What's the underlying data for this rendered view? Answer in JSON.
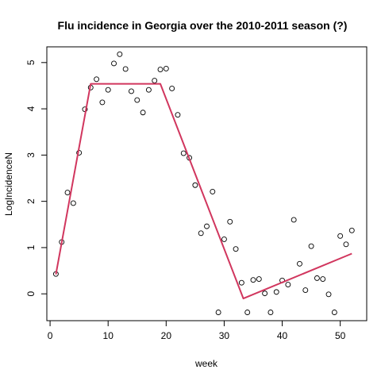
{
  "chart_data": {
    "type": "scatter",
    "title": "Flu incidence in Georgia over the 2010-2011 season (?)",
    "xlabel": "week",
    "ylabel": "LogIncidenceN",
    "xlim": [
      -0.56,
      54.56
    ],
    "ylim": [
      -0.58,
      5.34
    ],
    "xticks": [
      0,
      10,
      20,
      30,
      40,
      50
    ],
    "yticks": [
      0,
      1,
      2,
      3,
      4,
      5
    ],
    "grid": false,
    "legend": "none",
    "colors": {
      "fit_line": "#D1365E",
      "points": "#000000"
    },
    "series": [
      {
        "kind": "points",
        "x": [
          1,
          2,
          3,
          4,
          5,
          6,
          7,
          8,
          9,
          10,
          11,
          12,
          13,
          14,
          15,
          16,
          17,
          18,
          19,
          20,
          21,
          22,
          23,
          24,
          25,
          26,
          27,
          28,
          29,
          30,
          31,
          32,
          33,
          34,
          35,
          36,
          37,
          38,
          39,
          40,
          41,
          42,
          43,
          44,
          45,
          46,
          47,
          48,
          49,
          50,
          51,
          52
        ],
        "y": [
          0.43,
          1.12,
          2.19,
          1.96,
          3.05,
          3.99,
          4.46,
          4.64,
          4.14,
          4.41,
          4.98,
          5.18,
          4.86,
          4.38,
          4.19,
          3.92,
          4.41,
          4.61,
          4.85,
          4.87,
          4.44,
          3.87,
          3.04,
          2.94,
          2.35,
          1.31,
          1.46,
          2.21,
          -0.4,
          1.18,
          1.56,
          0.97,
          0.24,
          -0.4,
          0.3,
          0.32,
          0.01,
          -0.4,
          0.04,
          0.29,
          0.2,
          1.6,
          0.65,
          0.08,
          1.03,
          0.34,
          0.32,
          -0.01,
          -0.4,
          1.25,
          1.07,
          1.37
        ]
      },
      {
        "kind": "line",
        "x": [
          1,
          7,
          19,
          33.3,
          52
        ],
        "y": [
          0.42,
          4.54,
          4.54,
          -0.1,
          0.87
        ]
      }
    ]
  }
}
